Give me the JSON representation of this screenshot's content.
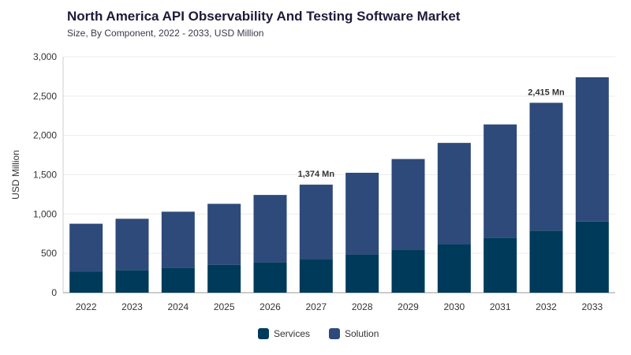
{
  "header": {
    "title": "North America API Observability And Testing Software Market",
    "subtitle": "Size, By Component, 2022 - 2033, USD Million"
  },
  "chart_data": {
    "type": "bar",
    "stacked": true,
    "categories": [
      "2022",
      "2023",
      "2024",
      "2025",
      "2026",
      "2027",
      "2028",
      "2029",
      "2030",
      "2031",
      "2032",
      "2033"
    ],
    "series": [
      {
        "name": "Services",
        "color": "#003a5a",
        "values": [
          270,
          288,
          318,
          352,
          388,
          430,
          488,
          548,
          618,
          700,
          790,
          905
        ]
      },
      {
        "name": "Solution",
        "color": "#2e4a7b",
        "values": [
          607,
          652,
          712,
          778,
          855,
          944,
          1037,
          1152,
          1287,
          1440,
          1625,
          1835
        ]
      }
    ],
    "ylabel": "USD Million",
    "xlabel": "",
    "ylim": [
      0,
      3000
    ],
    "yticks": [
      0,
      500,
      1000,
      1500,
      2000,
      2500,
      3000
    ],
    "ytick_labels": [
      "0",
      "500",
      "1,000",
      "1,500",
      "2,000",
      "2,500",
      "3,000"
    ],
    "grid": true,
    "legend_position": "bottom-center",
    "annotations": [
      {
        "category": "2027",
        "text": "1,374 Mn"
      },
      {
        "category": "2032",
        "text": "2,415 Mn"
      }
    ]
  }
}
